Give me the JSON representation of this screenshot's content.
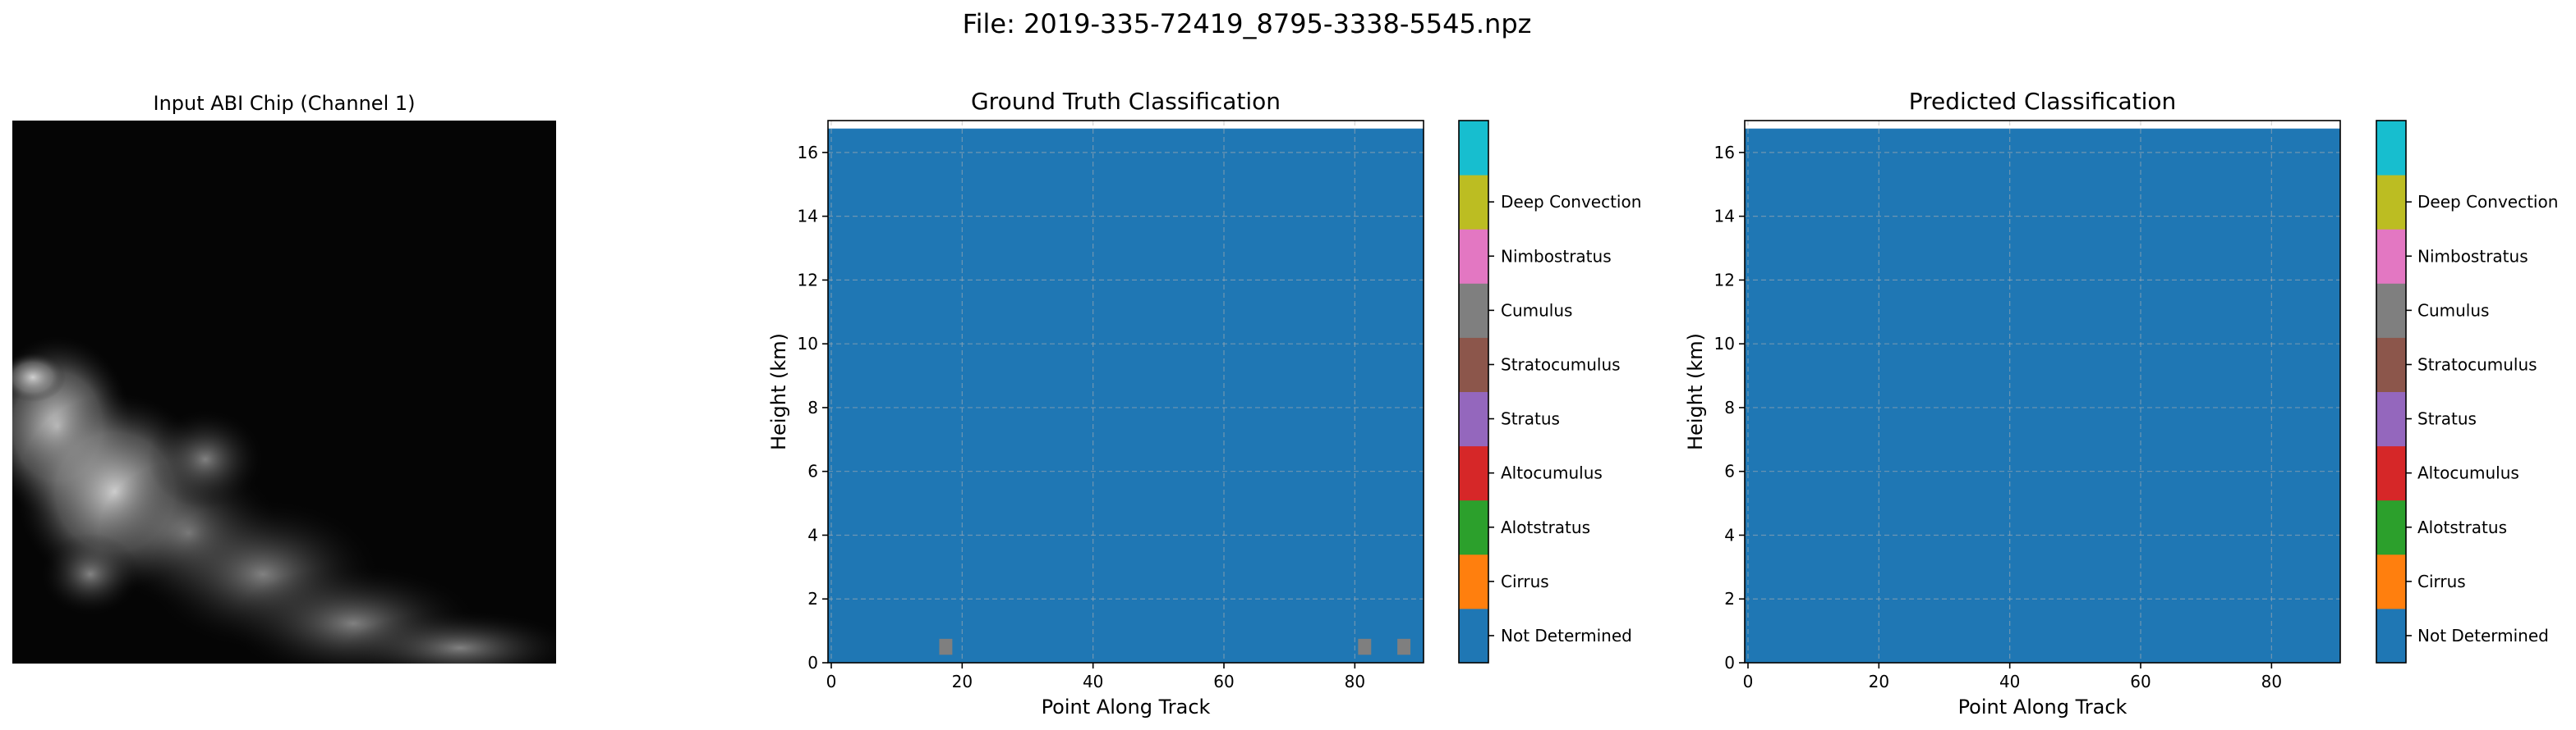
{
  "figure": {
    "suptitle": "File: 2019-335-72419_8795-3338-5545.npz"
  },
  "image_panel": {
    "title": "Input ABI Chip (Channel 1)",
    "channel_label": "Channel 1"
  },
  "chart_data": [
    {
      "type": "heatmap",
      "title": "Ground Truth Classification",
      "xlabel": "Point Along Track",
      "ylabel": "Height (km)",
      "xlim": [
        -0.5,
        90.5
      ],
      "ylim": [
        0,
        17
      ],
      "xticks": [
        0,
        20,
        40,
        60,
        80
      ],
      "yticks": [
        0,
        2,
        4,
        6,
        8,
        10,
        12,
        14,
        16
      ],
      "grid": true,
      "data_top_km": 16.75,
      "background_class": "Not Determined",
      "patches": [
        {
          "x_start": 16.5,
          "x_end": 18.5,
          "y_start": 0.25,
          "y_end": 0.75,
          "class": "Cumulus"
        },
        {
          "x_start": 80.5,
          "x_end": 82.5,
          "y_start": 0.25,
          "y_end": 0.75,
          "class": "Cumulus"
        },
        {
          "x_start": 86.5,
          "x_end": 88.5,
          "y_start": 0.25,
          "y_end": 0.75,
          "class": "Cumulus"
        }
      ]
    },
    {
      "type": "heatmap",
      "title": "Predicted Classification",
      "xlabel": "Point Along Track",
      "ylabel": "Height (km)",
      "xlim": [
        -0.5,
        90.5
      ],
      "ylim": [
        0,
        17
      ],
      "xticks": [
        0,
        20,
        40,
        60,
        80
      ],
      "yticks": [
        0,
        2,
        4,
        6,
        8,
        10,
        12,
        14,
        16
      ],
      "grid": true,
      "data_top_km": 16.75,
      "background_class": "Not Determined",
      "patches": []
    }
  ],
  "colorbar": {
    "classes": [
      {
        "label": "Not Determined",
        "color": "#1f77b4"
      },
      {
        "label": "Cirrus",
        "color": "#ff7f0e"
      },
      {
        "label": "Alotstratus",
        "color": "#2ca02c"
      },
      {
        "label": "Altocumulus",
        "color": "#d62728"
      },
      {
        "label": "Stratus",
        "color": "#9467bd"
      },
      {
        "label": "Stratocumulus",
        "color": "#8c564b"
      },
      {
        "label": "Cumulus",
        "color": "#7f7f7f"
      },
      {
        "label": "Nimbostratus",
        "color": "#e377c2"
      },
      {
        "label": "Deep Convection",
        "color": "#bcbd22"
      },
      {
        "label": "",
        "color": "#17becf"
      }
    ]
  }
}
